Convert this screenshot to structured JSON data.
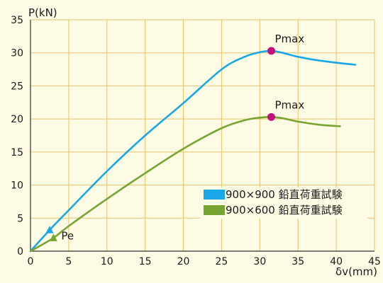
{
  "chart_data": {
    "type": "line",
    "xlabel": "δv(mm)",
    "ylabel": "P(kN)",
    "xlim": [
      0,
      45
    ],
    "ylim": [
      0,
      35
    ],
    "xticks": [
      0,
      5,
      10,
      15,
      20,
      25,
      30,
      35,
      40,
      45
    ],
    "yticks": [
      0,
      5,
      10,
      15,
      20,
      25,
      30,
      35
    ],
    "grid": true,
    "legend_position": "lower-right",
    "colors": {
      "series_1": "#1aa7e8",
      "series_2": "#76a531",
      "marker": "#c2127e",
      "grid": "#e8c36a",
      "background": "#fdfbe3",
      "axis": "#333333"
    },
    "series": [
      {
        "name": "900×900 鉛直荷重試験",
        "points": [
          [
            0,
            0
          ],
          [
            2.5,
            3.2
          ],
          [
            5,
            6.2
          ],
          [
            10,
            12.1
          ],
          [
            15,
            17.5
          ],
          [
            20,
            22.4
          ],
          [
            25,
            27.5
          ],
          [
            28,
            29.4
          ],
          [
            30,
            30.1
          ],
          [
            31.5,
            30.3
          ],
          [
            33,
            30.0
          ],
          [
            35,
            29.4
          ],
          [
            38,
            28.8
          ],
          [
            42.5,
            28.2
          ]
        ]
      },
      {
        "name": "900×600 鉛直荷重試験",
        "points": [
          [
            0,
            0
          ],
          [
            3,
            2.0
          ],
          [
            5,
            3.8
          ],
          [
            10,
            7.9
          ],
          [
            15,
            11.8
          ],
          [
            20,
            15.5
          ],
          [
            25,
            18.6
          ],
          [
            28,
            19.8
          ],
          [
            30,
            20.2
          ],
          [
            31.5,
            20.3
          ],
          [
            33,
            20.1
          ],
          [
            35,
            19.6
          ],
          [
            38,
            19.1
          ],
          [
            40.5,
            18.9
          ]
        ]
      }
    ],
    "annotations": {
      "pmax_1": {
        "label": "Pmax",
        "x": 31.5,
        "y": 30.3
      },
      "pmax_2": {
        "label": "Pmax",
        "x": 31.5,
        "y": 20.3
      },
      "pe": {
        "label": "Pe",
        "x_series1": 2.5,
        "y_series1": 3.2,
        "x_series2": 3.0,
        "y_series2": 2.0
      }
    }
  }
}
